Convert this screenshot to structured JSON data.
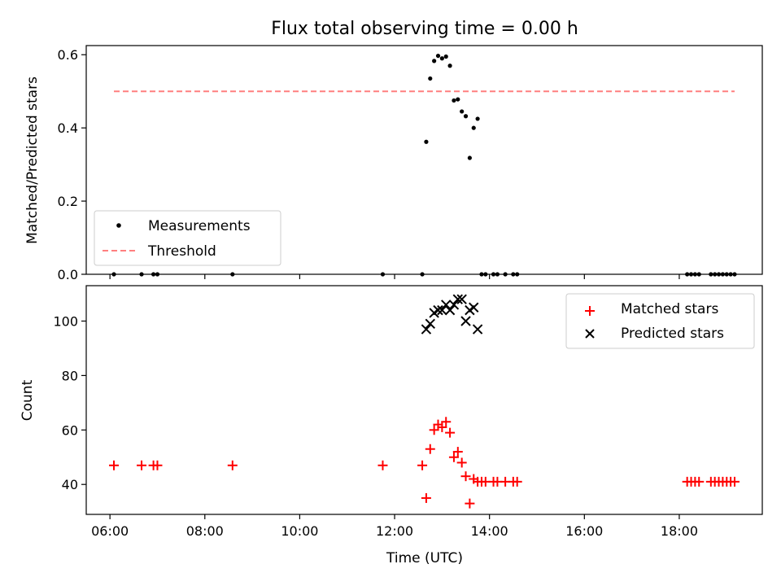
{
  "chart_data": [
    {
      "type": "scatter",
      "title": "Flux total observing time = 0.00 h",
      "xlabel": "",
      "ylabel": "Matched/Predicted stars",
      "xlim": [
        "05:30",
        "19:45"
      ],
      "ylim": [
        0,
        0.625
      ],
      "yticks": [
        0.0,
        0.2,
        0.4,
        0.6
      ],
      "ytick_labels": [
        "0.0",
        "0.2",
        "0.4",
        "0.6"
      ],
      "legend_position": "lower-left",
      "series": [
        {
          "name": "Measurements",
          "color": "#000000",
          "marker": "dot",
          "x": [
            "06:05",
            "06:40",
            "06:55",
            "07:00",
            "08:35",
            "11:45",
            "12:35",
            "12:40",
            "12:45",
            "12:50",
            "12:55",
            "13:00",
            "13:05",
            "13:10",
            "13:15",
            "13:20",
            "13:25",
            "13:30",
            "13:35",
            "13:40",
            "13:45",
            "13:50",
            "13:55",
            "14:05",
            "14:10",
            "14:20",
            "14:30",
            "14:35",
            "18:10",
            "18:15",
            "18:20",
            "18:25",
            "18:40",
            "18:45",
            "18:50",
            "18:55",
            "19:00",
            "19:05",
            "19:10"
          ],
          "y": [
            0.0,
            0.0,
            0.0,
            0.0,
            0.0,
            0.0,
            0.0,
            0.362,
            0.535,
            0.583,
            0.597,
            0.59,
            0.595,
            0.57,
            0.475,
            0.478,
            0.445,
            0.432,
            0.318,
            0.4,
            0.425,
            0.0,
            0.0,
            0.0,
            0.0,
            0.0,
            0.0,
            0.0,
            0.0,
            0.0,
            0.0,
            0.0,
            0.0,
            0.0,
            0.0,
            0.0,
            0.0,
            0.0,
            0.0
          ]
        },
        {
          "name": "Threshold",
          "color": "#ff7f7f",
          "style": "dashed",
          "x": [
            "06:05",
            "19:10"
          ],
          "y": [
            0.5,
            0.5
          ]
        }
      ]
    },
    {
      "type": "scatter",
      "title": "",
      "xlabel": "Time (UTC)",
      "ylabel": "Count",
      "xlim": [
        "05:30",
        "19:45"
      ],
      "ylim": [
        29,
        113
      ],
      "xticks": [
        "06:00",
        "08:00",
        "10:00",
        "12:00",
        "14:00",
        "16:00",
        "18:00"
      ],
      "yticks": [
        40,
        60,
        80,
        100
      ],
      "ytick_labels": [
        "40",
        "60",
        "80",
        "100"
      ],
      "legend_position": "upper-right",
      "series": [
        {
          "name": "Matched stars",
          "color": "#ff0000",
          "marker": "plus",
          "x": [
            "06:05",
            "06:40",
            "06:55",
            "07:00",
            "08:35",
            "11:45",
            "12:35",
            "12:40",
            "12:45",
            "12:50",
            "12:55",
            "13:00",
            "13:05",
            "13:10",
            "13:15",
            "13:20",
            "13:25",
            "13:30",
            "13:35",
            "13:40",
            "13:45",
            "13:50",
            "13:55",
            "14:05",
            "14:10",
            "14:20",
            "14:30",
            "14:35",
            "18:10",
            "18:15",
            "18:20",
            "18:25",
            "18:40",
            "18:45",
            "18:50",
            "18:55",
            "19:00",
            "19:05",
            "19:10"
          ],
          "y": [
            47,
            47,
            47,
            47,
            47,
            47,
            47,
            35,
            53,
            60,
            62,
            61,
            63,
            59,
            50,
            52,
            48,
            43,
            33,
            42,
            41,
            41,
            41,
            41,
            41,
            41,
            41,
            41,
            41,
            41,
            41,
            41,
            41,
            41,
            41,
            41,
            41,
            41,
            41
          ]
        },
        {
          "name": "Predicted stars",
          "color": "#000000",
          "marker": "x",
          "x": [
            "12:40",
            "12:45",
            "12:50",
            "12:55",
            "13:00",
            "13:05",
            "13:10",
            "13:15",
            "13:20",
            "13:25",
            "13:30",
            "13:35",
            "13:40",
            "13:45"
          ],
          "y": [
            97,
            99,
            103,
            104,
            104,
            106,
            104,
            106,
            108,
            108,
            100,
            104,
            105,
            97
          ]
        }
      ]
    }
  ]
}
